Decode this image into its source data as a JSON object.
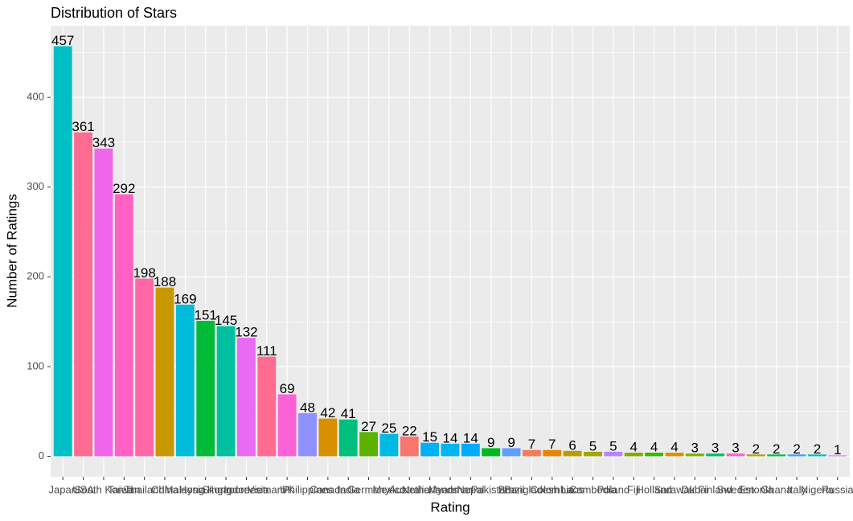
{
  "chart_data": {
    "type": "bar",
    "title": "Distribution of Stars",
    "x_label": "Rating",
    "y_label": "Number of Ratings",
    "categories": [
      "Japan",
      "USA",
      "South Korea",
      "Taiwan",
      "Thailand",
      "China",
      "Malaysia",
      "Hong Kong",
      "Singapore",
      "Indonesia",
      "Vietnam",
      "UK",
      "Philippines",
      "Canada",
      "India",
      "Germany",
      "Mexico",
      "Australia",
      "Netherlands",
      "Myanmar",
      "Nepal",
      "Pakistan",
      "Brazil",
      "Bangladesh",
      "Colombia",
      "Laos",
      "Cambodia",
      "Poland",
      "Fiji",
      "Holland",
      "Sarawak",
      "Dubai",
      "Finland",
      "Sweden",
      "Estonia",
      "Ghana",
      "Italy",
      "Nigeria",
      "Russia"
    ],
    "values": [
      457,
      361,
      343,
      292,
      198,
      188,
      169,
      151,
      145,
      132,
      111,
      69,
      48,
      42,
      41,
      27,
      25,
      22,
      15,
      14,
      14,
      9,
      9,
      7,
      7,
      6,
      5,
      5,
      4,
      4,
      4,
      3,
      3,
      3,
      2,
      2,
      2,
      2,
      1
    ],
    "colors": [
      "#00BFC4",
      "#FF6C91",
      "#F066EA",
      "#FF61C3",
      "#FF67A4",
      "#C99800",
      "#00BCD8",
      "#00BA38",
      "#00C19F",
      "#E76BF3",
      "#FF6C90",
      "#FC61D5",
      "#8F91FF",
      "#D89000",
      "#00BF7D",
      "#5BB300",
      "#00B9E3",
      "#F8766D",
      "#00B0F6",
      "#00B4EF",
      "#00ABFD",
      "#00B81F",
      "#619CFF",
      "#F37B59",
      "#E58700",
      "#BB9D00",
      "#A3A500",
      "#B983FF",
      "#7CAE00",
      "#39B600",
      "#DE8C00",
      "#85AD00",
      "#00BE6C",
      "#FD61D1",
      "#ABA300",
      "#00BB4E",
      "#35A2FF",
      "#00C0B8",
      "#E36EF6"
    ],
    "ylim": [
      -22.85,
      479.85
    ],
    "yticks": [
      0,
      100,
      200,
      300,
      400
    ],
    "grid": true
  }
}
